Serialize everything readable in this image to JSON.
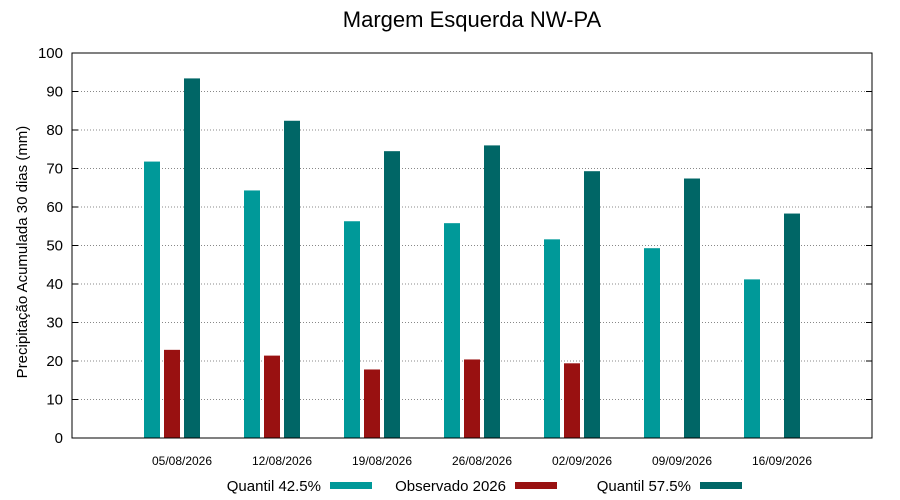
{
  "chart_data": {
    "type": "bar",
    "title": "Margem Esquerda NW-PA",
    "xlabel": "",
    "ylabel": "Precipitação Acumulada 30 dias (mm)",
    "ylim": [
      0,
      100
    ],
    "yticks": [
      0,
      10,
      20,
      30,
      40,
      50,
      60,
      70,
      80,
      90,
      100
    ],
    "grid": true,
    "legend_position": "bottom",
    "categories": [
      "05/08/2026",
      "12/08/2026",
      "19/08/2026",
      "26/08/2026",
      "02/09/2026",
      "09/09/2026",
      "16/09/2026"
    ],
    "series": [
      {
        "name": "Quantil 42.5%",
        "color": "#009999",
        "values": [
          71.8,
          64.3,
          56.3,
          55.8,
          51.6,
          49.3,
          41.2
        ]
      },
      {
        "name": "Observado 2026",
        "color": "#991111",
        "values": [
          22.9,
          21.4,
          17.8,
          20.4,
          19.4,
          null,
          null
        ]
      },
      {
        "name": "Quantil 57.5%",
        "color": "#006666",
        "values": [
          93.4,
          82.4,
          74.5,
          76.0,
          69.3,
          67.4,
          58.3
        ]
      }
    ]
  }
}
